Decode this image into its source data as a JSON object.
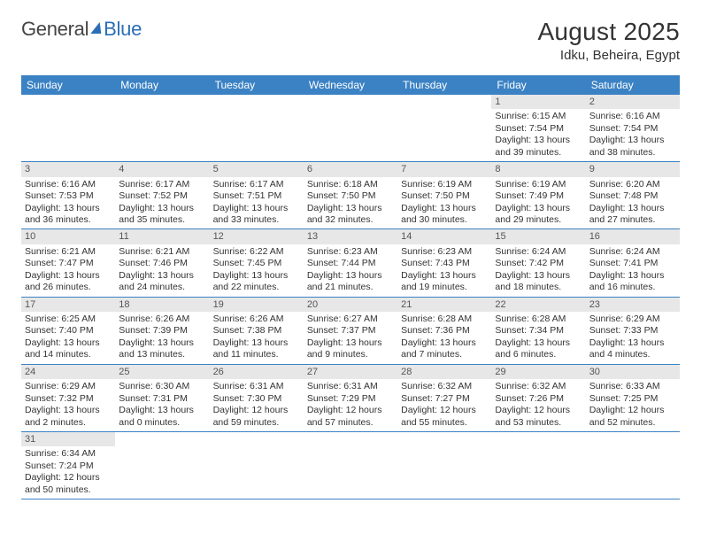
{
  "brand": {
    "part1": "General",
    "part2": "Blue"
  },
  "title": "August 2025",
  "location": "Idku, Beheira, Egypt",
  "dow": [
    "Sunday",
    "Monday",
    "Tuesday",
    "Wednesday",
    "Thursday",
    "Friday",
    "Saturday"
  ],
  "colors": {
    "header_bg": "#3b82c4",
    "header_text": "#ffffff",
    "daynum_bg": "#e7e7e7",
    "row_border": "#3b82c4",
    "text": "#333333"
  },
  "typography": {
    "title_fontsize": 28,
    "location_fontsize": 15,
    "dow_fontsize": 12,
    "cell_fontsize": 10.5
  },
  "calendar": {
    "first_weekday_index": 5,
    "days": [
      {
        "n": 1,
        "sunrise": "6:15 AM",
        "sunset": "7:54 PM",
        "daylight": "13 hours and 39 minutes."
      },
      {
        "n": 2,
        "sunrise": "6:16 AM",
        "sunset": "7:54 PM",
        "daylight": "13 hours and 38 minutes."
      },
      {
        "n": 3,
        "sunrise": "6:16 AM",
        "sunset": "7:53 PM",
        "daylight": "13 hours and 36 minutes."
      },
      {
        "n": 4,
        "sunrise": "6:17 AM",
        "sunset": "7:52 PM",
        "daylight": "13 hours and 35 minutes."
      },
      {
        "n": 5,
        "sunrise": "6:17 AM",
        "sunset": "7:51 PM",
        "daylight": "13 hours and 33 minutes."
      },
      {
        "n": 6,
        "sunrise": "6:18 AM",
        "sunset": "7:50 PM",
        "daylight": "13 hours and 32 minutes."
      },
      {
        "n": 7,
        "sunrise": "6:19 AM",
        "sunset": "7:50 PM",
        "daylight": "13 hours and 30 minutes."
      },
      {
        "n": 8,
        "sunrise": "6:19 AM",
        "sunset": "7:49 PM",
        "daylight": "13 hours and 29 minutes."
      },
      {
        "n": 9,
        "sunrise": "6:20 AM",
        "sunset": "7:48 PM",
        "daylight": "13 hours and 27 minutes."
      },
      {
        "n": 10,
        "sunrise": "6:21 AM",
        "sunset": "7:47 PM",
        "daylight": "13 hours and 26 minutes."
      },
      {
        "n": 11,
        "sunrise": "6:21 AM",
        "sunset": "7:46 PM",
        "daylight": "13 hours and 24 minutes."
      },
      {
        "n": 12,
        "sunrise": "6:22 AM",
        "sunset": "7:45 PM",
        "daylight": "13 hours and 22 minutes."
      },
      {
        "n": 13,
        "sunrise": "6:23 AM",
        "sunset": "7:44 PM",
        "daylight": "13 hours and 21 minutes."
      },
      {
        "n": 14,
        "sunrise": "6:23 AM",
        "sunset": "7:43 PM",
        "daylight": "13 hours and 19 minutes."
      },
      {
        "n": 15,
        "sunrise": "6:24 AM",
        "sunset": "7:42 PM",
        "daylight": "13 hours and 18 minutes."
      },
      {
        "n": 16,
        "sunrise": "6:24 AM",
        "sunset": "7:41 PM",
        "daylight": "13 hours and 16 minutes."
      },
      {
        "n": 17,
        "sunrise": "6:25 AM",
        "sunset": "7:40 PM",
        "daylight": "13 hours and 14 minutes."
      },
      {
        "n": 18,
        "sunrise": "6:26 AM",
        "sunset": "7:39 PM",
        "daylight": "13 hours and 13 minutes."
      },
      {
        "n": 19,
        "sunrise": "6:26 AM",
        "sunset": "7:38 PM",
        "daylight": "13 hours and 11 minutes."
      },
      {
        "n": 20,
        "sunrise": "6:27 AM",
        "sunset": "7:37 PM",
        "daylight": "13 hours and 9 minutes."
      },
      {
        "n": 21,
        "sunrise": "6:28 AM",
        "sunset": "7:36 PM",
        "daylight": "13 hours and 7 minutes."
      },
      {
        "n": 22,
        "sunrise": "6:28 AM",
        "sunset": "7:34 PM",
        "daylight": "13 hours and 6 minutes."
      },
      {
        "n": 23,
        "sunrise": "6:29 AM",
        "sunset": "7:33 PM",
        "daylight": "13 hours and 4 minutes."
      },
      {
        "n": 24,
        "sunrise": "6:29 AM",
        "sunset": "7:32 PM",
        "daylight": "13 hours and 2 minutes."
      },
      {
        "n": 25,
        "sunrise": "6:30 AM",
        "sunset": "7:31 PM",
        "daylight": "13 hours and 0 minutes."
      },
      {
        "n": 26,
        "sunrise": "6:31 AM",
        "sunset": "7:30 PM",
        "daylight": "12 hours and 59 minutes."
      },
      {
        "n": 27,
        "sunrise": "6:31 AM",
        "sunset": "7:29 PM",
        "daylight": "12 hours and 57 minutes."
      },
      {
        "n": 28,
        "sunrise": "6:32 AM",
        "sunset": "7:27 PM",
        "daylight": "12 hours and 55 minutes."
      },
      {
        "n": 29,
        "sunrise": "6:32 AM",
        "sunset": "7:26 PM",
        "daylight": "12 hours and 53 minutes."
      },
      {
        "n": 30,
        "sunrise": "6:33 AM",
        "sunset": "7:25 PM",
        "daylight": "12 hours and 52 minutes."
      },
      {
        "n": 31,
        "sunrise": "6:34 AM",
        "sunset": "7:24 PM",
        "daylight": "12 hours and 50 minutes."
      }
    ]
  },
  "labels": {
    "sunrise": "Sunrise: ",
    "sunset": "Sunset: ",
    "daylight": "Daylight: "
  }
}
